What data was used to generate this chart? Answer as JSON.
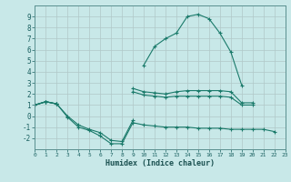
{
  "x": [
    0,
    1,
    2,
    3,
    4,
    5,
    6,
    7,
    8,
    9,
    10,
    11,
    12,
    13,
    14,
    15,
    16,
    17,
    18,
    19,
    20,
    21,
    22,
    23
  ],
  "line_upper": [
    1.0,
    1.3,
    1.1,
    0.0,
    -0.8,
    -1.2,
    -1.5,
    -2.2,
    -2.3,
    -0.4,
    null,
    null,
    null,
    null,
    null,
    null,
    null,
    null,
    null,
    null,
    null,
    null,
    null,
    null
  ],
  "line_lower": [
    1.0,
    1.3,
    1.1,
    -0.1,
    -1.0,
    -1.3,
    -1.8,
    -2.5,
    -2.5,
    -0.6,
    -0.8,
    -0.9,
    -1.0,
    -1.0,
    -1.0,
    -1.1,
    -1.1,
    -1.1,
    -1.2,
    -1.2,
    -1.2,
    -1.2,
    -1.4,
    null
  ],
  "line_mid1": [
    1.0,
    1.3,
    1.1,
    null,
    null,
    null,
    null,
    null,
    null,
    2.5,
    2.2,
    2.1,
    2.0,
    2.2,
    2.3,
    2.3,
    2.3,
    2.3,
    2.2,
    1.2,
    1.2,
    null,
    null,
    null
  ],
  "line_mid2": [
    1.0,
    1.3,
    1.1,
    null,
    null,
    null,
    null,
    null,
    null,
    2.2,
    1.9,
    1.8,
    1.7,
    1.8,
    1.8,
    1.8,
    1.8,
    1.8,
    1.7,
    1.0,
    1.0,
    null,
    null,
    null
  ],
  "line_peak": [
    null,
    null,
    null,
    null,
    null,
    null,
    null,
    null,
    null,
    null,
    4.6,
    6.3,
    7.0,
    7.5,
    9.0,
    9.2,
    8.8,
    7.5,
    5.8,
    2.8,
    null,
    null,
    null,
    null
  ],
  "color": "#1a7a6a",
  "bg_color": "#c8e8e8",
  "grid_color": "#b0c8c8",
  "xlabel": "Humidex (Indice chaleur)",
  "ylim": [
    -3,
    10
  ],
  "xlim": [
    0,
    23
  ],
  "yticks": [
    -2,
    -1,
    0,
    1,
    2,
    3,
    4,
    5,
    6,
    7,
    8,
    9
  ],
  "xticks": [
    0,
    1,
    2,
    3,
    4,
    5,
    6,
    7,
    8,
    9,
    10,
    11,
    12,
    13,
    14,
    15,
    16,
    17,
    18,
    19,
    20,
    21,
    22,
    23
  ]
}
